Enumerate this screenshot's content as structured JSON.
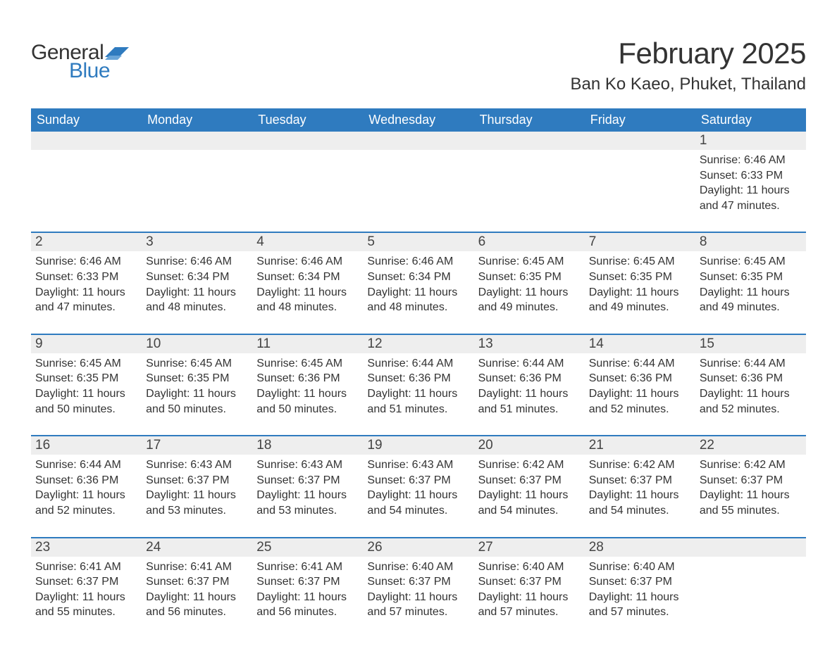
{
  "logo": {
    "text_general": "General",
    "text_blue": "Blue",
    "flag_color": "#2f7bbf"
  },
  "header": {
    "month_title": "February 2025",
    "location": "Ban Ko Kaeo, Phuket, Thailand"
  },
  "colors": {
    "header_bar": "#2f7bbf",
    "day_num_bg": "#eeeeee",
    "week_divider": "#2f7bbf",
    "text": "#333333",
    "logo_blue": "#2f7bbf"
  },
  "weekdays": [
    "Sunday",
    "Monday",
    "Tuesday",
    "Wednesday",
    "Thursday",
    "Friday",
    "Saturday"
  ],
  "weeks": [
    [
      {
        "day": "",
        "lines": []
      },
      {
        "day": "",
        "lines": []
      },
      {
        "day": "",
        "lines": []
      },
      {
        "day": "",
        "lines": []
      },
      {
        "day": "",
        "lines": []
      },
      {
        "day": "",
        "lines": []
      },
      {
        "day": "1",
        "lines": [
          "Sunrise: 6:46 AM",
          "Sunset: 6:33 PM",
          "Daylight: 11 hours and 47 minutes."
        ]
      }
    ],
    [
      {
        "day": "2",
        "lines": [
          "Sunrise: 6:46 AM",
          "Sunset: 6:33 PM",
          "Daylight: 11 hours and 47 minutes."
        ]
      },
      {
        "day": "3",
        "lines": [
          "Sunrise: 6:46 AM",
          "Sunset: 6:34 PM",
          "Daylight: 11 hours and 48 minutes."
        ]
      },
      {
        "day": "4",
        "lines": [
          "Sunrise: 6:46 AM",
          "Sunset: 6:34 PM",
          "Daylight: 11 hours and 48 minutes."
        ]
      },
      {
        "day": "5",
        "lines": [
          "Sunrise: 6:46 AM",
          "Sunset: 6:34 PM",
          "Daylight: 11 hours and 48 minutes."
        ]
      },
      {
        "day": "6",
        "lines": [
          "Sunrise: 6:45 AM",
          "Sunset: 6:35 PM",
          "Daylight: 11 hours and 49 minutes."
        ]
      },
      {
        "day": "7",
        "lines": [
          "Sunrise: 6:45 AM",
          "Sunset: 6:35 PM",
          "Daylight: 11 hours and 49 minutes."
        ]
      },
      {
        "day": "8",
        "lines": [
          "Sunrise: 6:45 AM",
          "Sunset: 6:35 PM",
          "Daylight: 11 hours and 49 minutes."
        ]
      }
    ],
    [
      {
        "day": "9",
        "lines": [
          "Sunrise: 6:45 AM",
          "Sunset: 6:35 PM",
          "Daylight: 11 hours and 50 minutes."
        ]
      },
      {
        "day": "10",
        "lines": [
          "Sunrise: 6:45 AM",
          "Sunset: 6:35 PM",
          "Daylight: 11 hours and 50 minutes."
        ]
      },
      {
        "day": "11",
        "lines": [
          "Sunrise: 6:45 AM",
          "Sunset: 6:36 PM",
          "Daylight: 11 hours and 50 minutes."
        ]
      },
      {
        "day": "12",
        "lines": [
          "Sunrise: 6:44 AM",
          "Sunset: 6:36 PM",
          "Daylight: 11 hours and 51 minutes."
        ]
      },
      {
        "day": "13",
        "lines": [
          "Sunrise: 6:44 AM",
          "Sunset: 6:36 PM",
          "Daylight: 11 hours and 51 minutes."
        ]
      },
      {
        "day": "14",
        "lines": [
          "Sunrise: 6:44 AM",
          "Sunset: 6:36 PM",
          "Daylight: 11 hours and 52 minutes."
        ]
      },
      {
        "day": "15",
        "lines": [
          "Sunrise: 6:44 AM",
          "Sunset: 6:36 PM",
          "Daylight: 11 hours and 52 minutes."
        ]
      }
    ],
    [
      {
        "day": "16",
        "lines": [
          "Sunrise: 6:44 AM",
          "Sunset: 6:36 PM",
          "Daylight: 11 hours and 52 minutes."
        ]
      },
      {
        "day": "17",
        "lines": [
          "Sunrise: 6:43 AM",
          "Sunset: 6:37 PM",
          "Daylight: 11 hours and 53 minutes."
        ]
      },
      {
        "day": "18",
        "lines": [
          "Sunrise: 6:43 AM",
          "Sunset: 6:37 PM",
          "Daylight: 11 hours and 53 minutes."
        ]
      },
      {
        "day": "19",
        "lines": [
          "Sunrise: 6:43 AM",
          "Sunset: 6:37 PM",
          "Daylight: 11 hours and 54 minutes."
        ]
      },
      {
        "day": "20",
        "lines": [
          "Sunrise: 6:42 AM",
          "Sunset: 6:37 PM",
          "Daylight: 11 hours and 54 minutes."
        ]
      },
      {
        "day": "21",
        "lines": [
          "Sunrise: 6:42 AM",
          "Sunset: 6:37 PM",
          "Daylight: 11 hours and 54 minutes."
        ]
      },
      {
        "day": "22",
        "lines": [
          "Sunrise: 6:42 AM",
          "Sunset: 6:37 PM",
          "Daylight: 11 hours and 55 minutes."
        ]
      }
    ],
    [
      {
        "day": "23",
        "lines": [
          "Sunrise: 6:41 AM",
          "Sunset: 6:37 PM",
          "Daylight: 11 hours and 55 minutes."
        ]
      },
      {
        "day": "24",
        "lines": [
          "Sunrise: 6:41 AM",
          "Sunset: 6:37 PM",
          "Daylight: 11 hours and 56 minutes."
        ]
      },
      {
        "day": "25",
        "lines": [
          "Sunrise: 6:41 AM",
          "Sunset: 6:37 PM",
          "Daylight: 11 hours and 56 minutes."
        ]
      },
      {
        "day": "26",
        "lines": [
          "Sunrise: 6:40 AM",
          "Sunset: 6:37 PM",
          "Daylight: 11 hours and 57 minutes."
        ]
      },
      {
        "day": "27",
        "lines": [
          "Sunrise: 6:40 AM",
          "Sunset: 6:37 PM",
          "Daylight: 11 hours and 57 minutes."
        ]
      },
      {
        "day": "28",
        "lines": [
          "Sunrise: 6:40 AM",
          "Sunset: 6:37 PM",
          "Daylight: 11 hours and 57 minutes."
        ]
      },
      {
        "day": "",
        "lines": []
      }
    ]
  ]
}
